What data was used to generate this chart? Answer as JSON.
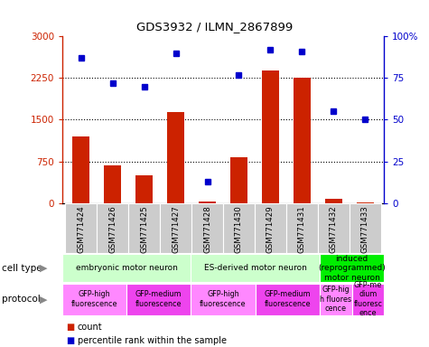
{
  "title": "GDS3932 / ILMN_2867899",
  "samples": [
    "GSM771424",
    "GSM771426",
    "GSM771425",
    "GSM771427",
    "GSM771428",
    "GSM771430",
    "GSM771429",
    "GSM771431",
    "GSM771432",
    "GSM771433"
  ],
  "counts": [
    1200,
    680,
    500,
    1640,
    30,
    830,
    2380,
    2260,
    80,
    10
  ],
  "percentiles": [
    87,
    72,
    70,
    90,
    13,
    77,
    92,
    91,
    55,
    50
  ],
  "ylim_left": [
    0,
    3000
  ],
  "ylim_right": [
    0,
    100
  ],
  "yticks_left": [
    0,
    750,
    1500,
    2250,
    3000
  ],
  "yticks_right": [
    0,
    25,
    50,
    75,
    100
  ],
  "ytick_labels_left": [
    "0",
    "750",
    "1500",
    "2250",
    "3000"
  ],
  "ytick_labels_right": [
    "0",
    "25",
    "50",
    "75",
    "100%"
  ],
  "bar_color": "#cc2200",
  "dot_color": "#0000cc",
  "cell_type_groups": [
    {
      "label": "embryonic motor neuron",
      "start": 0,
      "end": 3,
      "color": "#ccffcc"
    },
    {
      "label": "ES-derived motor neuron",
      "start": 4,
      "end": 7,
      "color": "#ccffcc"
    },
    {
      "label": "induced\n(reprogrammed)\nmotor neuron",
      "start": 8,
      "end": 9,
      "color": "#00ee00"
    }
  ],
  "protocol_groups": [
    {
      "label": "GFP-high\nfluorescence",
      "start": 0,
      "end": 1,
      "color": "#ff88ff"
    },
    {
      "label": "GFP-medium\nfluorescence",
      "start": 2,
      "end": 3,
      "color": "#ee44ee"
    },
    {
      "label": "GFP-high\nfluorescence",
      "start": 4,
      "end": 5,
      "color": "#ff88ff"
    },
    {
      "label": "GFP-medium\nfluorescence",
      "start": 6,
      "end": 7,
      "color": "#ee44ee"
    },
    {
      "label": "GFP-hig\nh fluores\ncence",
      "start": 8,
      "end": 8,
      "color": "#ff88ff"
    },
    {
      "label": "GFP-me\ndium\nfluoresc\nence",
      "start": 9,
      "end": 9,
      "color": "#ee44ee"
    }
  ],
  "legend_count_label": "count",
  "legend_percentile_label": "percentile rank within the sample",
  "cell_type_label": "cell type",
  "protocol_label": "protocol",
  "sample_bg_color": "#cccccc",
  "left_label_color": "#000000"
}
